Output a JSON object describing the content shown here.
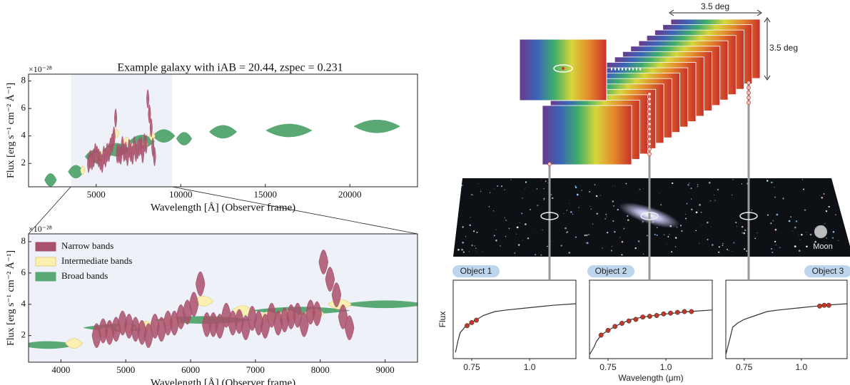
{
  "chart_data": [
    {
      "type": "violin",
      "title": "Example galaxy with iAB = 20.44, zspec = 0.231",
      "x_label": "Wavelength [Å] (Observer frame)",
      "y_label": "Flux [erg s⁻¹ cm⁻² Å⁻¹]",
      "y_scale_label": "×10⁻²⁸",
      "xlim": [
        1000,
        24000
      ],
      "ylim": [
        0.3,
        8.5
      ],
      "xticks": [
        5000,
        10000,
        15000,
        20000
      ],
      "yticks": [
        2,
        4,
        6,
        8
      ],
      "highlight": [
        3500,
        9500
      ],
      "series": [
        {
          "name": "Narrow bands",
          "color": "#a9506c",
          "x": [
            4550,
            4650,
            4750,
            4850,
            4950,
            5050,
            5150,
            5250,
            5350,
            5450,
            5550,
            5650,
            5750,
            5850,
            5950,
            6050,
            6150,
            6250,
            6350,
            6450,
            6550,
            6650,
            6750,
            6850,
            6950,
            7050,
            7150,
            7250,
            7350,
            7450,
            7550,
            7650,
            7750,
            7850,
            7950,
            8050,
            8150,
            8250,
            8350,
            8450
          ],
          "values": [
            2.0,
            2.3,
            2.2,
            2.4,
            2.8,
            2.6,
            2.4,
            2.2,
            2.0,
            2.6,
            2.4,
            2.8,
            2.8,
            3.2,
            3.5,
            4.0,
            5.3,
            2.7,
            2.7,
            2.6,
            3.3,
            2.8,
            2.9,
            2.5,
            3.1,
            2.8,
            2.6,
            3.3,
            2.8,
            3.0,
            3.2,
            3.3,
            2.7,
            3.5,
            3.4,
            6.7,
            5.6,
            4.6,
            3.2,
            2.5
          ],
          "widths": [
            140,
            140,
            140,
            140,
            140,
            140,
            140,
            140,
            140,
            140,
            140,
            140,
            140,
            140,
            140,
            140,
            140,
            140,
            140,
            140,
            140,
            140,
            140,
            140,
            140,
            140,
            140,
            140,
            140,
            140,
            140,
            140,
            140,
            140,
            140,
            140,
            140,
            140,
            140,
            140
          ]
        },
        {
          "name": "Intermediate bands",
          "color": "#fbf0b2",
          "x": [
            4200,
            4700,
            5000,
            5300,
            5700,
            6200,
            6800,
            7200,
            7500,
            7900,
            8300
          ],
          "values": [
            1.5,
            2.2,
            2.5,
            2.6,
            2.9,
            4.2,
            3.6,
            3.2,
            3.3,
            3.4,
            4.0
          ],
          "widths": [
            260,
            300,
            300,
            300,
            300,
            300,
            320,
            320,
            320,
            320,
            360
          ]
        },
        {
          "name": "Broad bands",
          "color": "#5aa874",
          "x": [
            2300,
            3800,
            4900,
            6200,
            7700,
            9000,
            10200,
            12500,
            16400,
            21600
          ],
          "values": [
            0.8,
            1.4,
            2.5,
            3.0,
            3.6,
            4.0,
            3.8,
            4.3,
            4.4,
            4.7
          ],
          "widths": [
            700,
            900,
            1100,
            1500,
            1500,
            1300,
            900,
            1600,
            2700,
            2700
          ]
        }
      ]
    },
    {
      "type": "violin",
      "x_label": "Wavelength [Å] (Observer frame)",
      "y_label": "Flux [erg s⁻¹ cm⁻² Å⁻¹]",
      "y_scale_label": "×10⁻²⁸",
      "xlim": [
        3500,
        9500
      ],
      "ylim": [
        0.3,
        8.5
      ],
      "xticks": [
        4000,
        5000,
        6000,
        7000,
        8000,
        9000
      ],
      "yticks": [
        2,
        4,
        6,
        8
      ],
      "legend": "upper left"
    },
    {
      "type": "line",
      "label": "Object 1",
      "y_label": "Flux",
      "xlim": [
        0.67,
        1.2
      ],
      "ylim": [
        0,
        1
      ],
      "xticks": [
        0.75,
        {
          "value": 1,
          "label": "1.0"
        }
      ],
      "series": [
        {
          "type": "line",
          "color": "#333333",
          "x": [
            0.68,
            0.69,
            0.7,
            0.72,
            0.75,
            0.8,
            0.85,
            0.9,
            1.0,
            1.1,
            1.2
          ],
          "values": [
            0.08,
            0.22,
            0.33,
            0.4,
            0.46,
            0.55,
            0.6,
            0.62,
            0.65,
            0.68,
            0.7
          ]
        },
        {
          "type": "scatter",
          "color": "#c0392b",
          "x": [
            0.73,
            0.75,
            0.77
          ],
          "values": [
            0.42,
            0.46,
            0.49
          ]
        }
      ]
    },
    {
      "type": "line",
      "label": "Object 2",
      "x_label": "Wavelength (μm)",
      "xlim": [
        0.67,
        1.2
      ],
      "ylim": [
        0,
        1
      ],
      "xticks": [
        0.75,
        {
          "value": 1,
          "label": "1.0"
        }
      ],
      "series": [
        {
          "type": "line",
          "color": "#333333",
          "x": [
            0.67,
            0.69,
            0.7,
            0.72,
            0.75,
            0.8,
            0.85,
            0.9,
            1.0,
            1.1,
            1.2
          ],
          "values": [
            0.05,
            0.15,
            0.22,
            0.3,
            0.36,
            0.44,
            0.5,
            0.53,
            0.57,
            0.6,
            0.62
          ]
        },
        {
          "type": "scatter",
          "color": "#c0392b",
          "x": [
            0.72,
            0.75,
            0.78,
            0.81,
            0.84,
            0.87,
            0.9,
            0.93,
            0.96,
            0.99,
            1.02,
            1.05,
            1.08,
            1.11
          ],
          "values": [
            0.3,
            0.36,
            0.41,
            0.45,
            0.48,
            0.5,
            0.53,
            0.54,
            0.55,
            0.57,
            0.58,
            0.59,
            0.6,
            0.6
          ]
        }
      ]
    },
    {
      "type": "line",
      "label": "Object 3",
      "xlim": [
        0.67,
        1.2
      ],
      "ylim": [
        0,
        1
      ],
      "xticks": [
        0.75,
        {
          "value": 1,
          "label": "1.0"
        }
      ],
      "series": [
        {
          "type": "line",
          "color": "#333333",
          "x": [
            0.67,
            0.69,
            0.7,
            0.72,
            0.75,
            0.8,
            0.85,
            0.9,
            1.0,
            1.1,
            1.2
          ],
          "values": [
            0.05,
            0.28,
            0.4,
            0.45,
            0.5,
            0.55,
            0.6,
            0.62,
            0.65,
            0.68,
            0.7
          ]
        },
        {
          "type": "scatter",
          "color": "#c0392b",
          "x": [
            1.08,
            1.1,
            1.12
          ],
          "values": [
            0.67,
            0.68,
            0.68
          ]
        }
      ]
    }
  ],
  "diagram": {
    "width_label": "3.5 deg",
    "height_label": "3.5 deg",
    "moon_label": "Moon"
  }
}
